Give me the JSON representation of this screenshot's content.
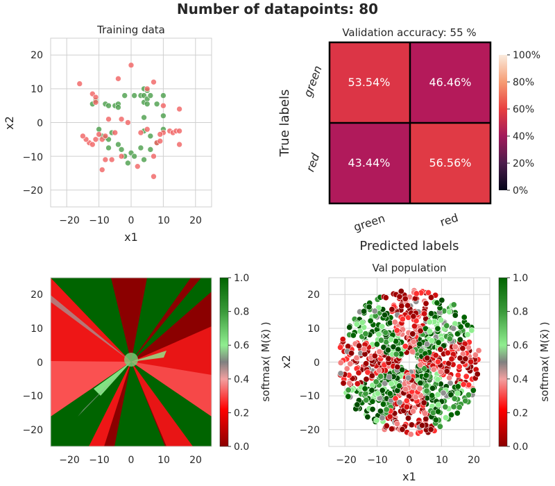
{
  "suptitle": "Number of datapoints: 80",
  "colors": {
    "green_point": "#4a9e4a",
    "red_point": "#f06262",
    "grid": "#cfcfcf",
    "cm_cell_high": "#dc3546",
    "cm_cell_low": "#b41a5a"
  },
  "chart_data": [
    {
      "type": "scatter",
      "title": "Training data",
      "xlabel": "x1",
      "ylabel": "x2",
      "xlim": [
        -25,
        25
      ],
      "ylim": [
        -25,
        25
      ],
      "xticks": [
        "−20",
        "−10",
        "0",
        "10",
        "20"
      ],
      "yticks": [
        "20",
        "10",
        "0",
        "−10",
        "−20"
      ],
      "grid": true,
      "series": [
        {
          "label": "green",
          "color": "#4a9e4a",
          "points": [
            [
              -12,
              5.5
            ],
            [
              -11,
              6.5
            ],
            [
              -8,
              5.5
            ],
            [
              -7,
              5
            ],
            [
              -5,
              5
            ],
            [
              -4,
              5.5
            ],
            [
              -4,
              4.5
            ],
            [
              -2,
              8
            ],
            [
              1,
              8
            ],
            [
              3,
              8
            ],
            [
              4,
              10
            ],
            [
              4,
              8
            ],
            [
              4,
              6
            ],
            [
              5,
              9.5
            ],
            [
              5,
              7
            ],
            [
              5,
              5.5
            ],
            [
              6,
              8
            ],
            [
              8,
              5.5
            ],
            [
              10,
              8
            ],
            [
              10,
              2
            ],
            [
              10,
              -2
            ],
            [
              4,
              1.5
            ],
            [
              4,
              -2.5
            ],
            [
              6,
              -4
            ],
            [
              -10,
              -2
            ],
            [
              -9,
              -4
            ],
            [
              -8,
              -4.5
            ],
            [
              -7,
              -5
            ],
            [
              -6,
              -3
            ],
            [
              -3,
              -8
            ],
            [
              -2,
              -10
            ],
            [
              -1,
              -12
            ],
            [
              0,
              -9
            ],
            [
              1,
              -10
            ],
            [
              3,
              -7.5
            ],
            [
              4,
              -11
            ],
            [
              6,
              -8
            ],
            [
              8,
              -6
            ],
            [
              -7,
              -7.5
            ],
            [
              -4,
              -6.5
            ]
          ]
        },
        {
          "label": "red",
          "color": "#f06262",
          "points": [
            [
              -16,
              11.5
            ],
            [
              -12,
              8.5
            ],
            [
              -11,
              7.5
            ],
            [
              -11,
              6
            ],
            [
              -4,
              13
            ],
            [
              0,
              17
            ],
            [
              7,
              12
            ],
            [
              5,
              10
            ],
            [
              -7,
              1
            ],
            [
              -3,
              1
            ],
            [
              -1,
              0
            ],
            [
              -10,
              -3.5
            ],
            [
              -11,
              -5
            ],
            [
              -13,
              -6
            ],
            [
              -12,
              -6.5
            ],
            [
              -14,
              -5
            ],
            [
              -15,
              -4
            ],
            [
              -9,
              -5
            ],
            [
              -8,
              -4
            ],
            [
              -5,
              -3
            ],
            [
              -9,
              -14
            ],
            [
              -8,
              -11
            ],
            [
              -6,
              -11
            ],
            [
              -3,
              -10
            ],
            [
              2,
              -13
            ],
            [
              7,
              -10
            ],
            [
              7,
              -16
            ],
            [
              8,
              -6
            ],
            [
              10,
              -3
            ],
            [
              9,
              -3.5
            ],
            [
              12,
              -2.5
            ],
            [
              13,
              -3
            ],
            [
              14,
              -2.5
            ],
            [
              15,
              -2.5
            ],
            [
              15,
              -6.5
            ],
            [
              15,
              4
            ],
            [
              10,
              5
            ],
            [
              3,
              -3
            ],
            [
              5,
              -2
            ],
            [
              9,
              -5.5
            ]
          ]
        }
      ]
    },
    {
      "type": "heatmap",
      "title": "Validation accuracy: 55 %",
      "xlabel": "Predicted labels",
      "ylabel": "True labels",
      "x_categories": [
        "green",
        "red"
      ],
      "y_categories": [
        "green",
        "red"
      ],
      "values": [
        [
          53.54,
          46.46
        ],
        [
          43.44,
          56.56
        ]
      ],
      "cell_labels": [
        [
          "53.54%",
          "46.46%"
        ],
        [
          "43.44%",
          "56.56%"
        ]
      ],
      "colorbar": {
        "range": [
          0,
          100
        ],
        "ticks": [
          "0%",
          "20%",
          "40%",
          "60%",
          "80%",
          "100%"
        ]
      }
    },
    {
      "type": "heatmap",
      "title": "",
      "xlabel": "",
      "ylabel": "",
      "xlim": [
        -25,
        25
      ],
      "ylim": [
        -25,
        25
      ],
      "xticks": [
        "−20",
        "−10",
        "0",
        "10",
        "20"
      ],
      "yticks": [
        "20",
        "10",
        "0",
        "−10",
        "−20"
      ],
      "description": "softmax decision surface",
      "colorbar": {
        "label": "softmax( M(x̄) )",
        "range": [
          0,
          1
        ],
        "ticks": [
          "0.0",
          "0.2",
          "0.4",
          "0.6",
          "0.8",
          "1.0"
        ]
      }
    },
    {
      "type": "scatter",
      "title": "Val population",
      "xlabel": "x1",
      "ylabel": "x2",
      "xlim": [
        -25,
        25
      ],
      "ylim": [
        -25,
        25
      ],
      "xticks": [
        "−20",
        "−10",
        "0",
        "10",
        "20"
      ],
      "yticks": [
        "20",
        "10",
        "0",
        "−10",
        "−20"
      ],
      "grid": true,
      "colorbar": {
        "label": "softmax( M(x̄) )",
        "range": [
          0,
          1
        ],
        "ticks": [
          "0.0",
          "0.2",
          "0.4",
          "0.6",
          "0.8",
          "1.0"
        ]
      }
    }
  ]
}
